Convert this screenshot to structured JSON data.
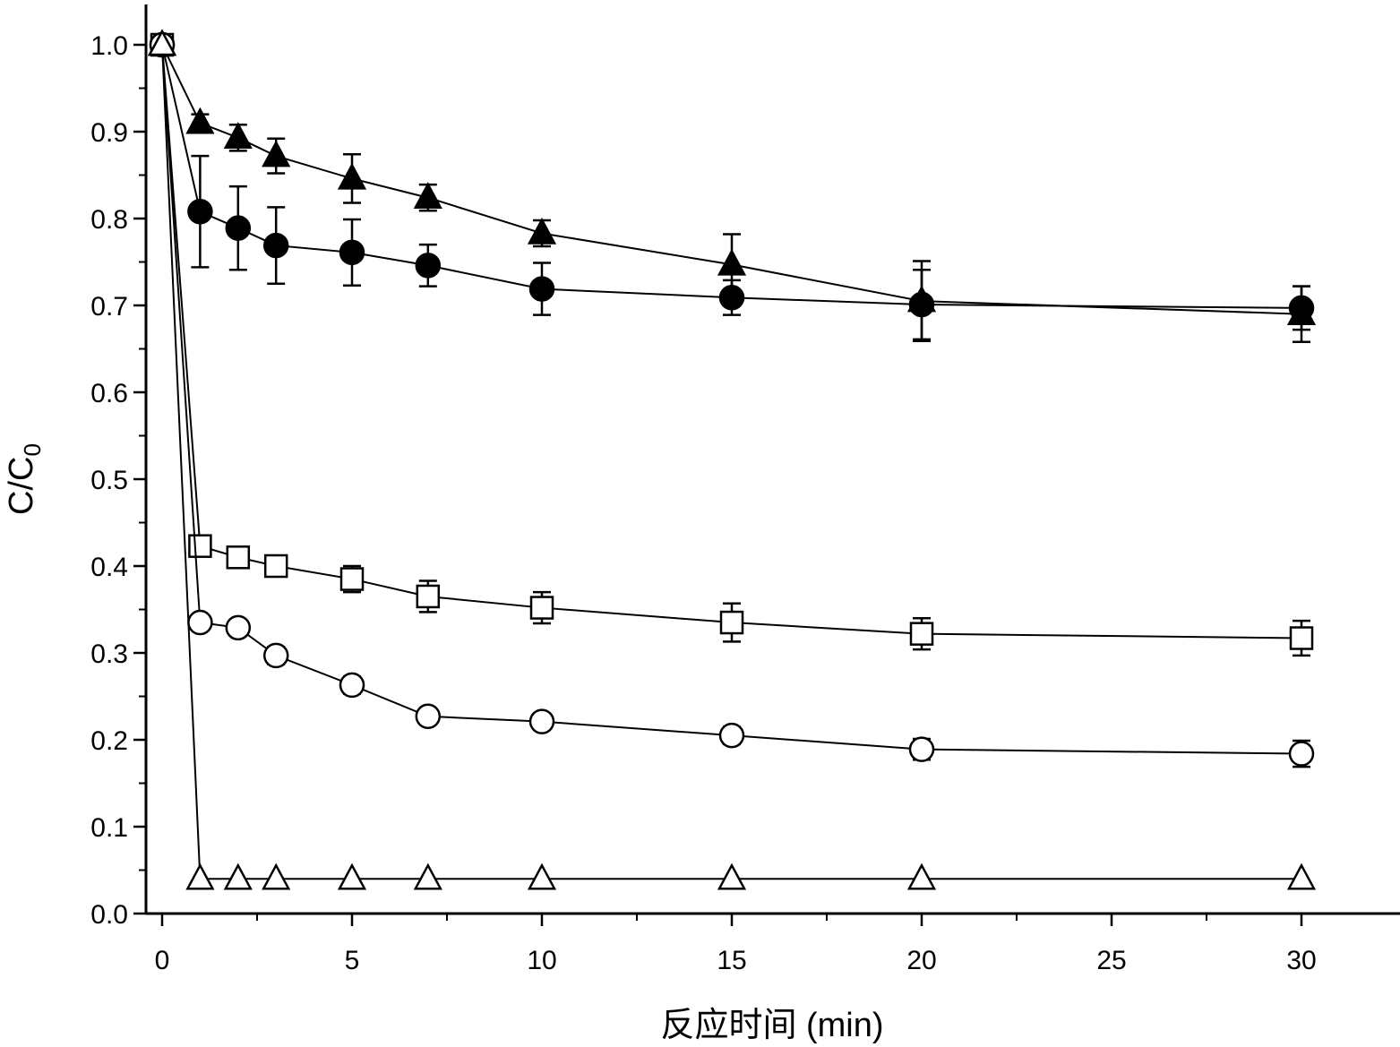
{
  "chart_data": {
    "type": "scatter",
    "title": "",
    "xlabel": "反应时间 (min)",
    "ylabel_main": "C/C",
    "ylabel_sub": "0",
    "xlim": [
      -0.5,
      32.2
    ],
    "ylim": [
      0,
      1.04
    ],
    "xticks": [
      0,
      5,
      10,
      15,
      20,
      25,
      30
    ],
    "xtick_labels": [
      "0",
      "5",
      "10",
      "15",
      "20",
      "25",
      "30"
    ],
    "yticks": [
      0.0,
      0.1,
      0.2,
      0.3,
      0.4,
      0.5,
      0.6,
      0.7,
      0.8,
      0.9,
      1.0
    ],
    "ytick_labels": [
      "0.0",
      "0.1",
      "0.2",
      "0.3",
      "0.4",
      "0.5",
      "0.6",
      "0.7",
      "0.8",
      "0.9",
      "1.0"
    ],
    "grid": false,
    "legend": "none",
    "series": [
      {
        "marker": "filled-triangle",
        "x": [
          0,
          1,
          2,
          3,
          5,
          7,
          10,
          15,
          20,
          30
        ],
        "y": [
          1.0,
          0.91,
          0.893,
          0.872,
          0.846,
          0.824,
          0.783,
          0.747,
          0.705,
          0.69
        ],
        "err": [
          0,
          0.01,
          0.015,
          0.02,
          0.028,
          0.015,
          0.015,
          0.035,
          0.046,
          0.032
        ]
      },
      {
        "marker": "filled-circle",
        "x": [
          0,
          1,
          2,
          3,
          5,
          7,
          10,
          15,
          20,
          30
        ],
        "y": [
          1.0,
          0.808,
          0.789,
          0.769,
          0.761,
          0.746,
          0.719,
          0.709,
          0.701,
          0.697
        ],
        "err": [
          0,
          0.064,
          0.048,
          0.044,
          0.038,
          0.024,
          0.03,
          0.02,
          0.04,
          0.025
        ]
      },
      {
        "marker": "open-square",
        "x": [
          0,
          1,
          2,
          3,
          5,
          7,
          10,
          15,
          20,
          30
        ],
        "y": [
          1.0,
          0.423,
          0.41,
          0.4,
          0.385,
          0.365,
          0.352,
          0.335,
          0.322,
          0.317
        ],
        "err": [
          0,
          0.008,
          0.01,
          0.01,
          0.015,
          0.018,
          0.018,
          0.022,
          0.018,
          0.02
        ]
      },
      {
        "marker": "open-circle",
        "x": [
          0,
          1,
          2,
          3,
          5,
          7,
          10,
          15,
          20,
          30
        ],
        "y": [
          1.0,
          0.335,
          0.329,
          0.297,
          0.263,
          0.227,
          0.221,
          0.205,
          0.189,
          0.184
        ],
        "err": [
          0,
          0.005,
          0.005,
          0.01,
          0.01,
          0.008,
          0.008,
          0.01,
          0.012,
          0.015
        ]
      },
      {
        "marker": "open-triangle",
        "x": [
          0,
          1,
          2,
          3,
          5,
          7,
          10,
          15,
          20,
          30
        ],
        "y": [
          1.0,
          0.04,
          0.04,
          0.04,
          0.04,
          0.04,
          0.04,
          0.04,
          0.04,
          0.04
        ],
        "err": [
          0,
          0,
          0,
          0,
          0,
          0,
          0,
          0,
          0,
          0
        ]
      }
    ]
  }
}
